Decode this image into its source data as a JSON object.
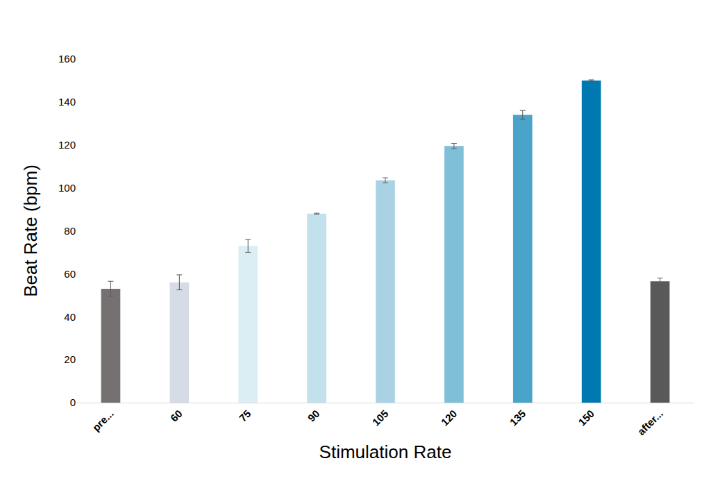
{
  "chart_data": {
    "type": "bar",
    "x_label": "Stimulation Rate",
    "y_label": "Beat Rate (bpm)",
    "categories": [
      "pre...",
      "60",
      "75",
      "90",
      "105",
      "120",
      "135",
      "150",
      "after..."
    ],
    "values": [
      53,
      56,
      73,
      88,
      103.5,
      119.5,
      134,
      150,
      56.5
    ],
    "errors": [
      3.5,
      3.5,
      3,
      0.2,
      1.2,
      1.2,
      2,
      0.3,
      1.5
    ],
    "colors": [
      "#767171",
      "#d6dce5",
      "#daeef3",
      "#c2e1ec",
      "#a9d3e5",
      "#7fbfd8",
      "#4aa3c8",
      "#0078b0",
      "#595959"
    ],
    "ylim": [
      0,
      160
    ],
    "yticks": [
      0,
      20,
      40,
      60,
      80,
      100,
      120,
      140,
      160
    ],
    "grid": false
  }
}
